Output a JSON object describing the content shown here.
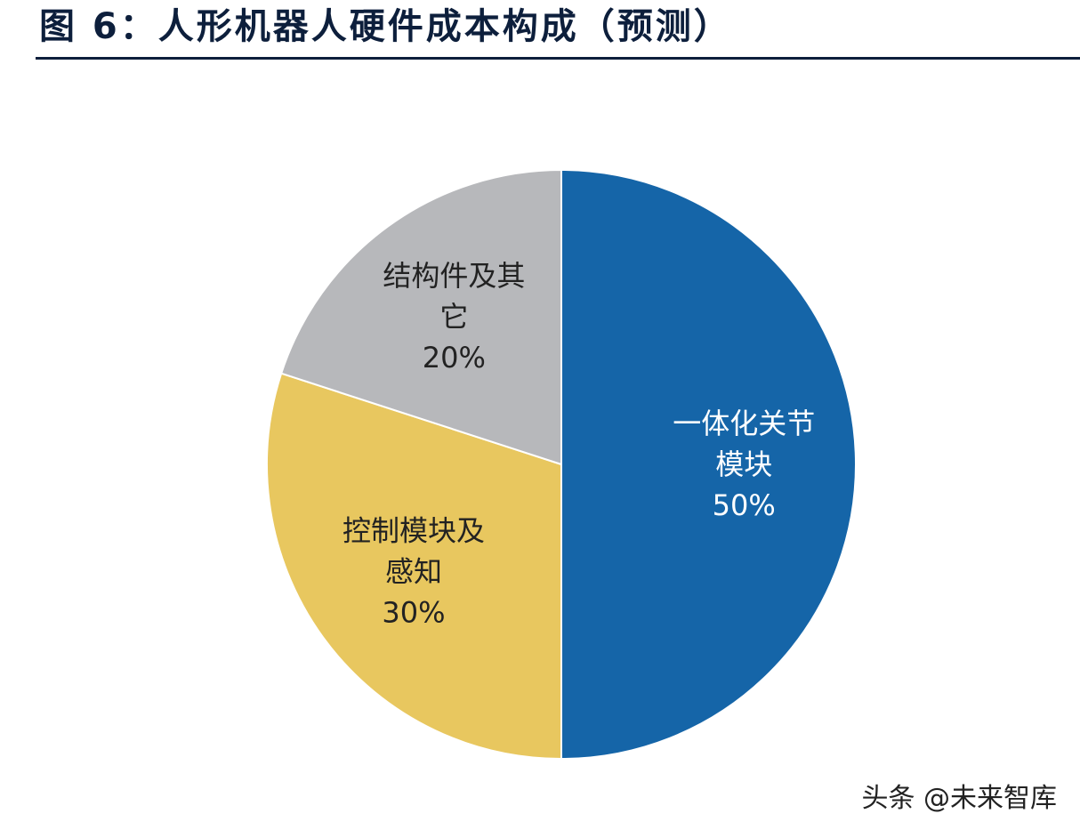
{
  "title": "图 6：人形机器人硬件成本构成（预测）",
  "watermark": "头条 @未来智库",
  "colors": {
    "joint": "#1565a8",
    "control": "#e8c75f",
    "structure": "#b7b8bb",
    "title": "#0d1f3c"
  },
  "chart_data": {
    "type": "pie",
    "title": "图 6：人形机器人硬件成本构成（预测）",
    "start_angle_deg": 0,
    "direction": "clockwise",
    "slices": [
      {
        "label_lines": [
          "一体化关节",
          "模块"
        ],
        "value": 50,
        "value_label": "50%",
        "color": "#1565a8",
        "text_color": "#ffffff"
      },
      {
        "label_lines": [
          "控制模块及",
          "感知"
        ],
        "value": 30,
        "value_label": "30%",
        "color": "#e8c75f",
        "text_color": "#222222"
      },
      {
        "label_lines": [
          "结构件及其",
          "它"
        ],
        "value": 20,
        "value_label": "20%",
        "color": "#b7b8bb",
        "text_color": "#222222"
      }
    ]
  }
}
